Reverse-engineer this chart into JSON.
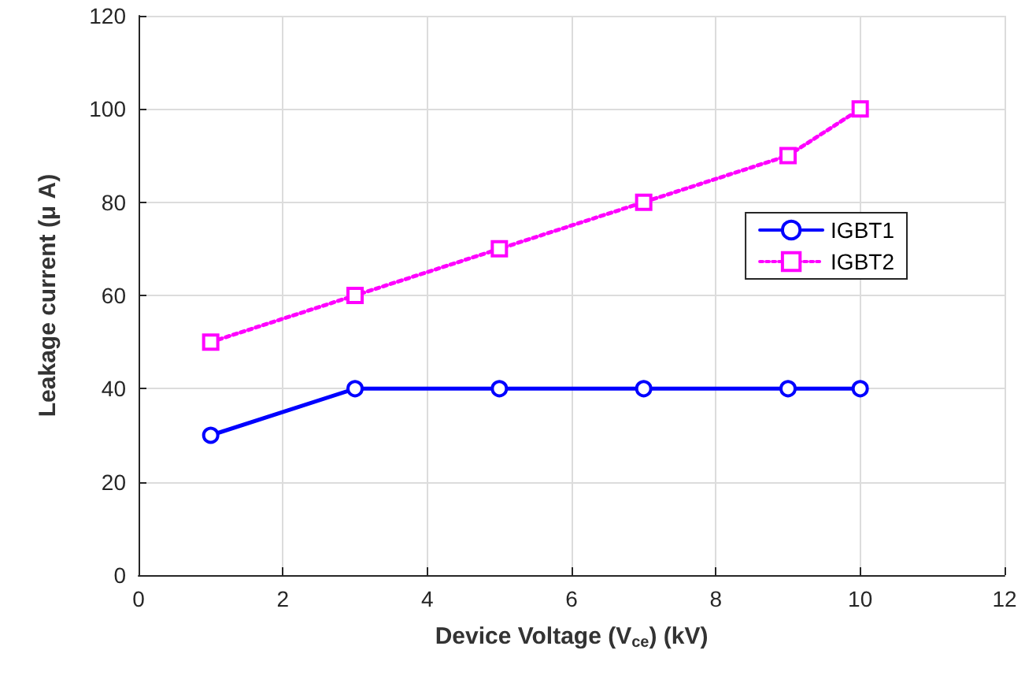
{
  "chart_data": {
    "type": "line",
    "xlabel": "Device Voltage (V$_{ce}$) (kV)",
    "ylabel": "Leakage current (μ A)",
    "x": [
      1,
      3,
      5,
      7,
      9,
      10
    ],
    "series": [
      {
        "name": "IGBT1",
        "color": "#0000ff",
        "values": [
          30,
          40,
          40,
          40,
          40,
          40
        ],
        "marker": "circle",
        "line_style": "solid"
      },
      {
        "name": "IGBT2",
        "color": "#ff00ff",
        "values": [
          50,
          60,
          70,
          80,
          90,
          100
        ],
        "marker": "square",
        "line_style": "dotted"
      }
    ],
    "xlim": [
      0,
      12
    ],
    "xticks": [
      0,
      2,
      4,
      6,
      8,
      10,
      12
    ],
    "ylim": [
      0,
      120
    ],
    "yticks": [
      0,
      20,
      40,
      60,
      80,
      100,
      120
    ],
    "grid": true,
    "legend": "right"
  }
}
